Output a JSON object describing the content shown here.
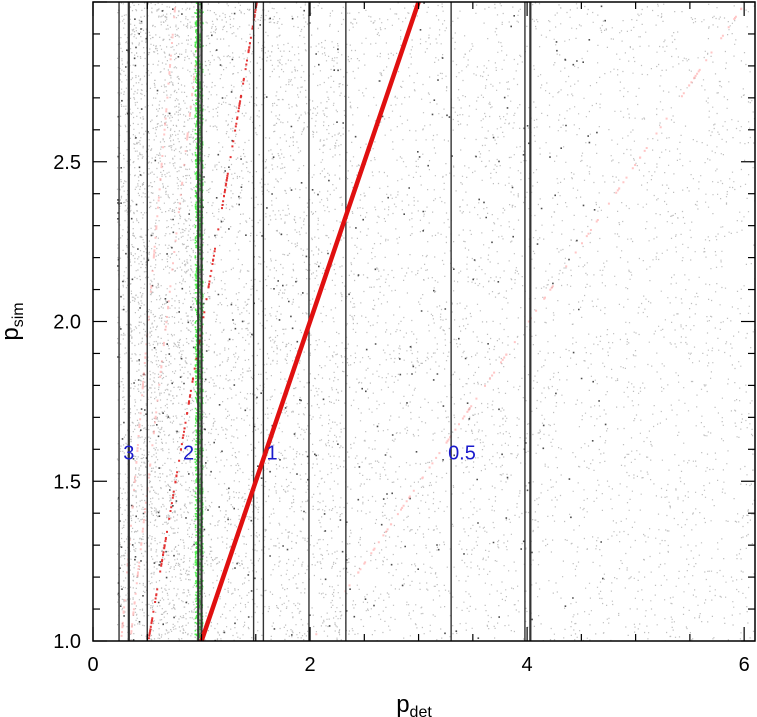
{
  "chart_data": {
    "type": "scatter",
    "title": "",
    "xlabel": {
      "main": "p",
      "sub": "det"
    },
    "ylabel": {
      "main": "p",
      "sub": "sim"
    },
    "xlim": [
      0,
      6.1
    ],
    "ylim": [
      1.0,
      3.0
    ],
    "grid": false,
    "legend": "none",
    "x_ticks": [
      0,
      2,
      4,
      6
    ],
    "x_tick_labels": [
      "0",
      "2",
      "4",
      "6"
    ],
    "y_ticks": [
      1.0,
      1.5,
      2.0,
      2.5
    ],
    "y_tick_labels": [
      "1.0",
      "1.5",
      "2.0",
      "2.5"
    ],
    "colors": {
      "background_points": "#a8a8a8",
      "dark_points": "#222222",
      "main_line": "#e01010",
      "faint_line": "#ff8080",
      "green_band": "#33ee33",
      "vlines": "#333333",
      "annotation": "#1a1acc"
    },
    "main_relation": {
      "label": "p_det = p_sim",
      "slope": 1,
      "x_range": [
        1.0,
        3.0
      ]
    },
    "faint_relations": [
      {
        "kind": "p_det = p_sim / 2",
        "factor": 0.5,
        "strength": "medium"
      },
      {
        "kind": "p_det = p_sim / 3",
        "factor": 0.3333,
        "strength": "faint"
      },
      {
        "kind": "p_det = p_sim / 4",
        "factor": 0.25,
        "strength": "faint"
      },
      {
        "kind": "p_det = 2 p_sim",
        "factor": 2.0,
        "strength": "faint"
      }
    ],
    "green_band": {
      "x_center": 0.97,
      "x_halfwidth": 0.035
    },
    "vertical_lines": [
      0.24,
      0.33,
      0.5,
      0.97,
      1.0,
      1.48,
      1.57,
      1.99,
      2.33,
      3.3,
      3.98,
      4.03
    ],
    "annotations": [
      {
        "text": "3",
        "x": 0.33,
        "y": 1.59
      },
      {
        "text": "2",
        "x": 0.88,
        "y": 1.59
      },
      {
        "text": "1",
        "x": 1.65,
        "y": 1.59
      },
      {
        "text": "0.5",
        "x": 3.4,
        "y": 1.59
      }
    ]
  }
}
